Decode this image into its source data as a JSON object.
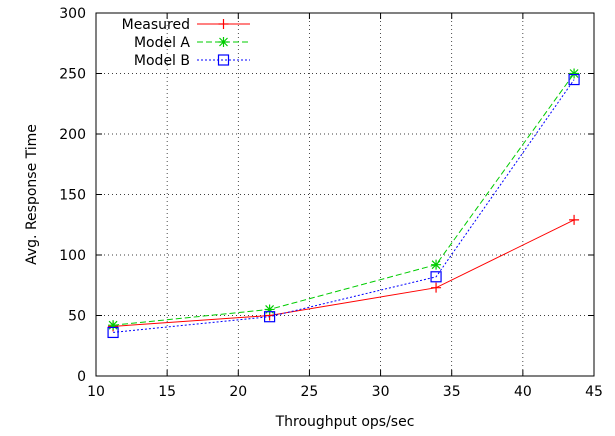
{
  "chart_data": {
    "type": "line",
    "xlabel": "Throughput ops/sec",
    "ylabel": "Avg. Response Time",
    "xlim": [
      10,
      45
    ],
    "ylim": [
      0,
      300
    ],
    "xticks": [
      10,
      15,
      20,
      25,
      30,
      35,
      40,
      45
    ],
    "yticks": [
      0,
      50,
      100,
      150,
      200,
      250,
      300
    ],
    "grid": true,
    "legend_position": "top-left",
    "series": [
      {
        "name": "Measured",
        "color": "#ff0000",
        "line_style": "solid",
        "marker": "plus",
        "points": [
          [
            11.2,
            41
          ],
          [
            22.2,
            50
          ],
          [
            33.9,
            73
          ],
          [
            43.6,
            129
          ]
        ]
      },
      {
        "name": "Model A",
        "color": "#00cc00",
        "line_style": "dashed",
        "marker": "star",
        "points": [
          [
            11.2,
            42
          ],
          [
            22.2,
            55
          ],
          [
            33.9,
            92
          ],
          [
            43.6,
            250
          ]
        ]
      },
      {
        "name": "Model B",
        "color": "#0000ff",
        "line_style": "dotted",
        "marker": "open-square",
        "points": [
          [
            11.2,
            36
          ],
          [
            22.2,
            49
          ],
          [
            33.9,
            82
          ],
          [
            43.6,
            245
          ]
        ]
      }
    ]
  }
}
